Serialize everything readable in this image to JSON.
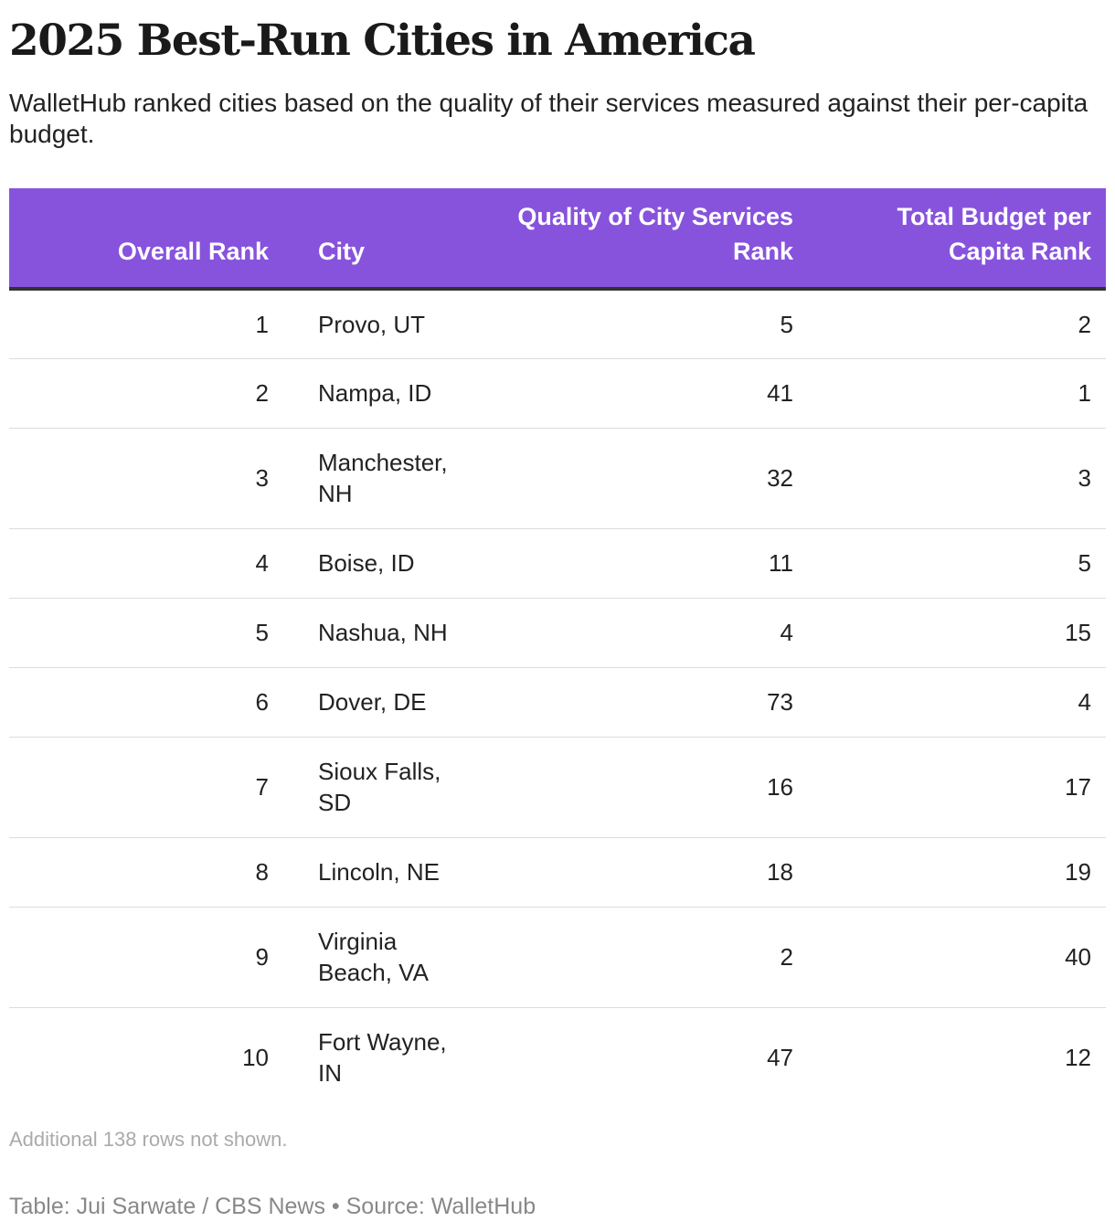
{
  "title": "2025 Best-Run Cities in America",
  "subtitle": "WalletHub ranked cities based on the quality of their services measured against their per-capita budget.",
  "colors": {
    "header_background": "#8753dd",
    "header_text": "#ffffff",
    "header_rule": "#333333",
    "row_divider": "#dcdcdc"
  },
  "chart_data": {
    "type": "table",
    "title": "2025 Best-Run Cities in America",
    "columns": [
      "Overall Rank",
      "City",
      "Quality of City Services Rank",
      "Total Budget per Capita Rank"
    ],
    "rows": [
      {
        "overall_rank": "1",
        "city": "Provo, UT",
        "quality_rank": "5",
        "budget_rank": "2"
      },
      {
        "overall_rank": "2",
        "city": "Nampa, ID",
        "quality_rank": "41",
        "budget_rank": "1"
      },
      {
        "overall_rank": "3",
        "city": "Manchester, NH",
        "quality_rank": "32",
        "budget_rank": "3"
      },
      {
        "overall_rank": "4",
        "city": "Boise, ID",
        "quality_rank": "11",
        "budget_rank": "5"
      },
      {
        "overall_rank": "5",
        "city": "Nashua, NH",
        "quality_rank": "4",
        "budget_rank": "15"
      },
      {
        "overall_rank": "6",
        "city": "Dover, DE",
        "quality_rank": "73",
        "budget_rank": "4"
      },
      {
        "overall_rank": "7",
        "city": "Sioux Falls, SD",
        "quality_rank": "16",
        "budget_rank": "17"
      },
      {
        "overall_rank": "8",
        "city": "Lincoln, NE",
        "quality_rank": "18",
        "budget_rank": "19"
      },
      {
        "overall_rank": "9",
        "city": "Virginia Beach, VA",
        "quality_rank": "2",
        "budget_rank": "40"
      },
      {
        "overall_rank": "10",
        "city": "Fort Wayne, IN",
        "quality_rank": "47",
        "budget_rank": "12"
      }
    ]
  },
  "note": "Additional 138 rows not shown.",
  "footer": "Table: Jui Sarwate / CBS News • Source: WalletHub"
}
